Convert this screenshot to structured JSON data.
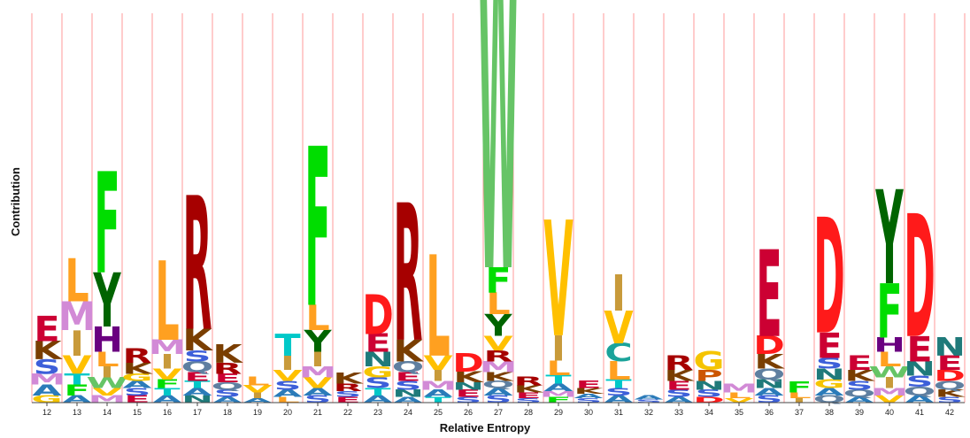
{
  "chart_data": {
    "type": "sequence-logo",
    "ylabel": "Contribution",
    "xlabel": "Relative Entropy",
    "grid": "vertical-dividers",
    "colors": {
      "divider": "#ff9a9a",
      "axis": "#444444",
      "residues": {
        "A": "#2b7bb9",
        "C": "#1aa39a",
        "D": "#ff1a1a",
        "E": "#cc0033",
        "F": "#00dd00",
        "G": "#f5c400",
        "H": "#6a0080",
        "I": "#c89a3a",
        "K": "#7a3e00",
        "L": "#ffa020",
        "M": "#d28ad6",
        "N": "#1f7a7a",
        "P": "#cc5500",
        "Q": "#5f7fa0",
        "R": "#a60000",
        "S": "#3d5fd9",
        "T": "#00c8c8",
        "V": "#ffc000",
        "W": "#66c466",
        "Y": "#006400",
        "_": "#888888"
      }
    },
    "positions": [
      {
        "pos": "12",
        "letters": [
          {
            "aa": "E",
            "v": 0.35
          },
          {
            "aa": "K",
            "v": 0.25
          },
          {
            "aa": "S",
            "v": 0.2
          },
          {
            "aa": "A",
            "v": 0.15
          },
          {
            "aa": "M",
            "v": 0.15
          },
          {
            "aa": "G",
            "v": 0.1
          }
        ]
      },
      {
        "pos": "13",
        "letters": [
          {
            "aa": "L",
            "v": 0.6
          },
          {
            "aa": "M",
            "v": 0.4
          },
          {
            "aa": "I",
            "v": 0.35
          },
          {
            "aa": "V",
            "v": 0.25
          },
          {
            "aa": "F",
            "v": 0.15
          },
          {
            "aa": "T",
            "v": 0.15
          },
          {
            "aa": "A",
            "v": 0.1
          }
        ]
      },
      {
        "pos": "14",
        "letters": [
          {
            "aa": "F",
            "v": 1.4
          },
          {
            "aa": "Y",
            "v": 0.75
          },
          {
            "aa": "H",
            "v": 0.35
          },
          {
            "aa": "L",
            "v": 0.2
          },
          {
            "aa": "W",
            "v": 0.15
          },
          {
            "aa": "I",
            "v": 0.15
          },
          {
            "aa": "M",
            "v": 0.1
          },
          {
            "aa": "V",
            "v": 0.1
          }
        ]
      },
      {
        "pos": "15",
        "letters": [
          {
            "aa": "R",
            "v": 0.2
          },
          {
            "aa": "K",
            "v": 0.15
          },
          {
            "aa": "E",
            "v": 0.1
          },
          {
            "aa": "S",
            "v": 0.1
          },
          {
            "aa": "A",
            "v": 0.1
          },
          {
            "aa": "G",
            "v": 0.1
          }
        ]
      },
      {
        "pos": "16",
        "letters": [
          {
            "aa": "L",
            "v": 1.1
          },
          {
            "aa": "I",
            "v": 0.2
          },
          {
            "aa": "M",
            "v": 0.2
          },
          {
            "aa": "V",
            "v": 0.15
          },
          {
            "aa": "F",
            "v": 0.12
          },
          {
            "aa": "A",
            "v": 0.1
          },
          {
            "aa": "T",
            "v": 0.1
          }
        ]
      },
      {
        "pos": "17",
        "letters": [
          {
            "aa": "R",
            "v": 1.85
          },
          {
            "aa": "K",
            "v": 0.3
          },
          {
            "aa": "Q",
            "v": 0.15
          },
          {
            "aa": "S",
            "v": 0.15
          },
          {
            "aa": "E",
            "v": 0.12
          },
          {
            "aa": "N",
            "v": 0.1
          },
          {
            "aa": "A",
            "v": 0.1
          },
          {
            "aa": "T",
            "v": 0.1
          }
        ]
      },
      {
        "pos": "18",
        "letters": [
          {
            "aa": "K",
            "v": 0.25
          },
          {
            "aa": "R",
            "v": 0.15
          },
          {
            "aa": "E",
            "v": 0.12
          },
          {
            "aa": "S",
            "v": 0.1
          },
          {
            "aa": "Q",
            "v": 0.1
          },
          {
            "aa": "A",
            "v": 0.08
          }
        ]
      },
      {
        "pos": "19",
        "letters": [
          {
            "aa": "L",
            "v": 0.12
          },
          {
            "aa": "V",
            "v": 0.1
          },
          {
            "aa": "I",
            "v": 0.08
          },
          {
            "aa": "A",
            "v": 0.06
          }
        ]
      },
      {
        "pos": "20",
        "letters": [
          {
            "aa": "T",
            "v": 0.3
          },
          {
            "aa": "I",
            "v": 0.2
          },
          {
            "aa": "V",
            "v": 0.15
          },
          {
            "aa": "S",
            "v": 0.12
          },
          {
            "aa": "A",
            "v": 0.1
          },
          {
            "aa": "L",
            "v": 0.08
          }
        ]
      },
      {
        "pos": "21",
        "letters": [
          {
            "aa": "F",
            "v": 2.2
          },
          {
            "aa": "L",
            "v": 0.35
          },
          {
            "aa": "Y",
            "v": 0.3
          },
          {
            "aa": "I",
            "v": 0.2
          },
          {
            "aa": "V",
            "v": 0.15
          },
          {
            "aa": "M",
            "v": 0.15
          },
          {
            "aa": "S",
            "v": 0.1
          },
          {
            "aa": "A",
            "v": 0.1
          }
        ]
      },
      {
        "pos": "22",
        "letters": [
          {
            "aa": "K",
            "v": 0.15
          },
          {
            "aa": "R",
            "v": 0.1
          },
          {
            "aa": "E",
            "v": 0.08
          },
          {
            "aa": "S",
            "v": 0.08
          }
        ]
      },
      {
        "pos": "23",
        "letters": [
          {
            "aa": "D",
            "v": 0.55
          },
          {
            "aa": "E",
            "v": 0.25
          },
          {
            "aa": "N",
            "v": 0.2
          },
          {
            "aa": "S",
            "v": 0.15
          },
          {
            "aa": "G",
            "v": 0.15
          },
          {
            "aa": "A",
            "v": 0.1
          },
          {
            "aa": "T",
            "v": 0.1
          }
        ]
      },
      {
        "pos": "24",
        "letters": [
          {
            "aa": "R",
            "v": 1.9
          },
          {
            "aa": "K",
            "v": 0.3
          },
          {
            "aa": "Q",
            "v": 0.15
          },
          {
            "aa": "S",
            "v": 0.12
          },
          {
            "aa": "E",
            "v": 0.12
          },
          {
            "aa": "N",
            "v": 0.1
          },
          {
            "aa": "A",
            "v": 0.08
          }
        ]
      },
      {
        "pos": "25",
        "letters": [
          {
            "aa": "L",
            "v": 1.4
          },
          {
            "aa": "V",
            "v": 0.2
          },
          {
            "aa": "I",
            "v": 0.15
          },
          {
            "aa": "M",
            "v": 0.12
          },
          {
            "aa": "A",
            "v": 0.1
          },
          {
            "aa": "T",
            "v": 0.08
          }
        ]
      },
      {
        "pos": "26",
        "letters": [
          {
            "aa": "D",
            "v": 0.25
          },
          {
            "aa": "K",
            "v": 0.15
          },
          {
            "aa": "E",
            "v": 0.1
          },
          {
            "aa": "N",
            "v": 0.1
          },
          {
            "aa": "S",
            "v": 0.08
          }
        ]
      },
      {
        "pos": "27",
        "letters": [
          {
            "aa": "W",
            "v": 4.9
          },
          {
            "aa": "Y",
            "v": 0.3
          },
          {
            "aa": "F",
            "v": 0.35
          },
          {
            "aa": "L",
            "v": 0.3
          },
          {
            "aa": "V",
            "v": 0.2
          },
          {
            "aa": "M",
            "v": 0.15
          },
          {
            "aa": "R",
            "v": 0.15
          },
          {
            "aa": "K",
            "v": 0.12
          },
          {
            "aa": "S",
            "v": 0.1
          },
          {
            "aa": "A",
            "v": 0.1
          },
          {
            "aa": "Q",
            "v": 0.1
          }
        ]
      },
      {
        "pos": "28",
        "letters": [
          {
            "aa": "R",
            "v": 0.12
          },
          {
            "aa": "K",
            "v": 0.1
          },
          {
            "aa": "E",
            "v": 0.08
          },
          {
            "aa": "S",
            "v": 0.06
          }
        ]
      },
      {
        "pos": "29",
        "letters": [
          {
            "aa": "V",
            "v": 1.6
          },
          {
            "aa": "I",
            "v": 0.35
          },
          {
            "aa": "L",
            "v": 0.2
          },
          {
            "aa": "T",
            "v": 0.12
          },
          {
            "aa": "A",
            "v": 0.1
          },
          {
            "aa": "F",
            "v": 0.08
          },
          {
            "aa": "M",
            "v": 0.08
          }
        ]
      },
      {
        "pos": "30",
        "letters": [
          {
            "aa": "E",
            "v": 0.1
          },
          {
            "aa": "K",
            "v": 0.08
          },
          {
            "aa": "S",
            "v": 0.06
          },
          {
            "aa": "A",
            "v": 0.06
          }
        ]
      },
      {
        "pos": "31",
        "letters": [
          {
            "aa": "I",
            "v": 0.5
          },
          {
            "aa": "V",
            "v": 0.45
          },
          {
            "aa": "L",
            "v": 0.25
          },
          {
            "aa": "C",
            "v": 0.25
          },
          {
            "aa": "T",
            "v": 0.12
          },
          {
            "aa": "A",
            "v": 0.1
          },
          {
            "aa": "S",
            "v": 0.1
          }
        ]
      },
      {
        "pos": "32",
        "letters": [
          {
            "aa": "A",
            "v": 0.06
          },
          {
            "aa": "S",
            "v": 0.04
          }
        ]
      },
      {
        "pos": "33",
        "letters": [
          {
            "aa": "R",
            "v": 0.2
          },
          {
            "aa": "K",
            "v": 0.15
          },
          {
            "aa": "E",
            "v": 0.12
          },
          {
            "aa": "S",
            "v": 0.1
          },
          {
            "aa": "A",
            "v": 0.08
          }
        ]
      },
      {
        "pos": "34",
        "letters": [
          {
            "aa": "G",
            "v": 0.25
          },
          {
            "aa": "P",
            "v": 0.15
          },
          {
            "aa": "N",
            "v": 0.12
          },
          {
            "aa": "S",
            "v": 0.1
          },
          {
            "aa": "D",
            "v": 0.08
          }
        ]
      },
      {
        "pos": "35",
        "letters": [
          {
            "aa": "M",
            "v": 0.12
          },
          {
            "aa": "L",
            "v": 0.08
          },
          {
            "aa": "V",
            "v": 0.06
          }
        ]
      },
      {
        "pos": "36",
        "letters": [
          {
            "aa": "E",
            "v": 1.2
          },
          {
            "aa": "D",
            "v": 0.25
          },
          {
            "aa": "K",
            "v": 0.2
          },
          {
            "aa": "Q",
            "v": 0.15
          },
          {
            "aa": "N",
            "v": 0.12
          },
          {
            "aa": "S",
            "v": 0.1
          },
          {
            "aa": "A",
            "v": 0.1
          }
        ]
      },
      {
        "pos": "37",
        "letters": [
          {
            "aa": "F",
            "v": 0.15
          },
          {
            "aa": "L",
            "v": 0.08
          },
          {
            "aa": "I",
            "v": 0.06
          }
        ]
      },
      {
        "pos": "38",
        "letters": [
          {
            "aa": "D",
            "v": 1.6
          },
          {
            "aa": "E",
            "v": 0.35
          },
          {
            "aa": "N",
            "v": 0.15
          },
          {
            "aa": "S",
            "v": 0.15
          },
          {
            "aa": "G",
            "v": 0.12
          },
          {
            "aa": "Q",
            "v": 0.1
          },
          {
            "aa": "A",
            "v": 0.1
          }
        ]
      },
      {
        "pos": "39",
        "letters": [
          {
            "aa": "E",
            "v": 0.2
          },
          {
            "aa": "K",
            "v": 0.15
          },
          {
            "aa": "S",
            "v": 0.12
          },
          {
            "aa": "Q",
            "v": 0.1
          },
          {
            "aa": "A",
            "v": 0.08
          }
        ]
      },
      {
        "pos": "40",
        "letters": [
          {
            "aa": "Y",
            "v": 1.3
          },
          {
            "aa": "F",
            "v": 0.75
          },
          {
            "aa": "L",
            "v": 0.2
          },
          {
            "aa": "H",
            "v": 0.2
          },
          {
            "aa": "I",
            "v": 0.15
          },
          {
            "aa": "W",
            "v": 0.15
          },
          {
            "aa": "V",
            "v": 0.1
          },
          {
            "aa": "M",
            "v": 0.1
          }
        ]
      },
      {
        "pos": "41",
        "letters": [
          {
            "aa": "D",
            "v": 1.7
          },
          {
            "aa": "E",
            "v": 0.35
          },
          {
            "aa": "N",
            "v": 0.2
          },
          {
            "aa": "S",
            "v": 0.15
          },
          {
            "aa": "Q",
            "v": 0.12
          },
          {
            "aa": "A",
            "v": 0.1
          }
        ]
      },
      {
        "pos": "42",
        "letters": [
          {
            "aa": "N",
            "v": 0.25
          },
          {
            "aa": "E",
            "v": 0.2
          },
          {
            "aa": "D",
            "v": 0.15
          },
          {
            "aa": "Q",
            "v": 0.12
          },
          {
            "aa": "K",
            "v": 0.1
          },
          {
            "aa": "S",
            "v": 0.08
          }
        ]
      }
    ],
    "ylim": [
      0,
      5.5
    ]
  }
}
